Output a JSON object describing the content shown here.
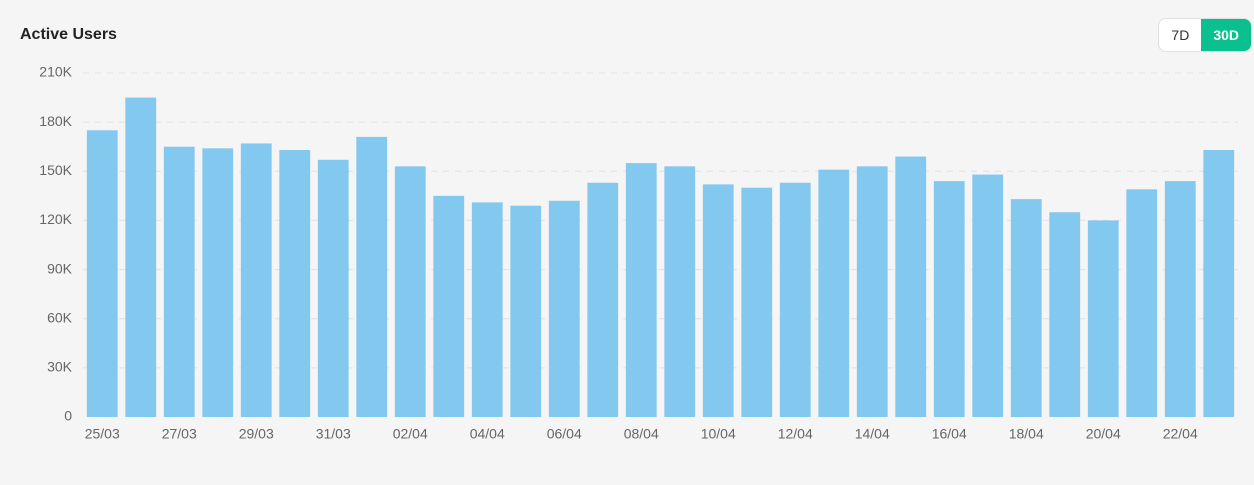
{
  "chart_data": {
    "type": "bar",
    "title": "Active Users",
    "categories": [
      "25/03",
      null,
      "27/03",
      null,
      "29/03",
      null,
      "31/03",
      null,
      "02/04",
      null,
      "04/04",
      null,
      "06/04",
      null,
      "08/04",
      null,
      "10/04",
      null,
      "12/04",
      null,
      "14/04",
      null,
      "16/04",
      null,
      "18/04",
      null,
      "20/04",
      null,
      "22/04",
      null
    ],
    "values": [
      175000,
      195000,
      165000,
      164000,
      167000,
      163000,
      157000,
      171000,
      153000,
      135000,
      131000,
      129000,
      132000,
      143000,
      155000,
      153000,
      142000,
      140000,
      143000,
      151000,
      153000,
      159000,
      144000,
      148000,
      133000,
      125000,
      120000,
      139000,
      144000,
      163000
    ],
    "color": "#83c8ef",
    "ylim": [
      0,
      210000
    ],
    "yticks": [
      0,
      {
        "value": 30000,
        "label": "30K"
      },
      {
        "value": 60000,
        "label": "60K"
      },
      {
        "value": 90000,
        "label": "90K"
      },
      {
        "value": 120000,
        "label": "120K"
      },
      {
        "value": 150000,
        "label": "150K"
      },
      {
        "value": 180000,
        "label": "180K"
      },
      {
        "value": 210000,
        "label": "210K"
      }
    ],
    "grid": true
  },
  "controls": {
    "buttons": [
      "7D",
      "30D"
    ],
    "active": 1
  }
}
